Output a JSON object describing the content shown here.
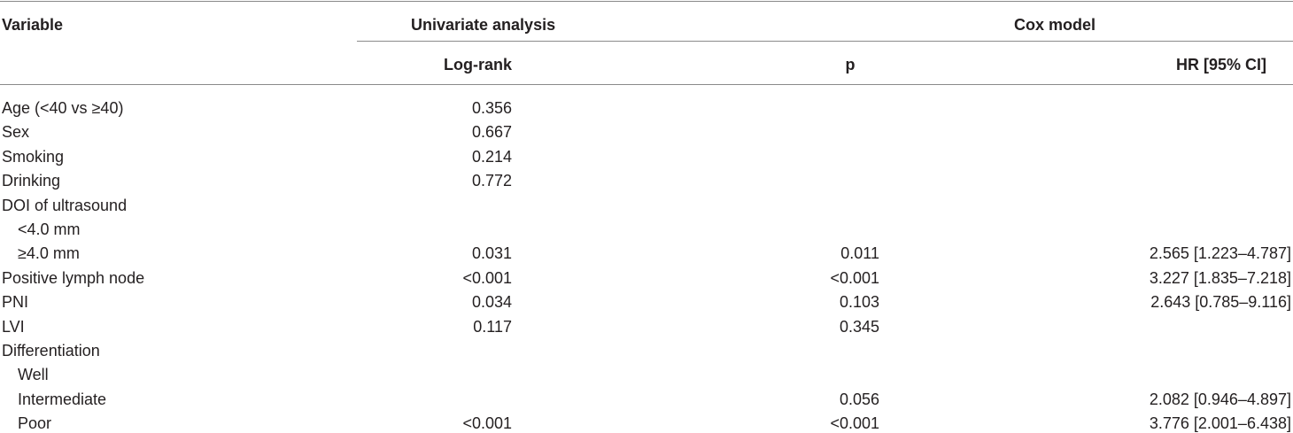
{
  "header": {
    "variable": "Variable",
    "univariate": "Univariate analysis",
    "cox": "Cox model",
    "logrank": "Log-rank",
    "p": "p",
    "hr": "HR [95% CI]"
  },
  "rows": [
    {
      "label": "Age (<40 vs ≥40)",
      "indent": false,
      "logrank": "0.356",
      "p": "",
      "hr": ""
    },
    {
      "label": "Sex",
      "indent": false,
      "logrank": "0.667",
      "p": "",
      "hr": ""
    },
    {
      "label": "Smoking",
      "indent": false,
      "logrank": "0.214",
      "p": "",
      "hr": ""
    },
    {
      "label": "Drinking",
      "indent": false,
      "logrank": "0.772",
      "p": "",
      "hr": ""
    },
    {
      "label": "DOI of ultrasound",
      "indent": false,
      "logrank": "",
      "p": "",
      "hr": ""
    },
    {
      "label": "<4.0 mm",
      "indent": true,
      "logrank": "",
      "p": "",
      "hr": ""
    },
    {
      "label": "≥4.0 mm",
      "indent": true,
      "logrank": "0.031",
      "p": "0.011",
      "hr": "2.565 [1.223–4.787]"
    },
    {
      "label": "Positive lymph node",
      "indent": false,
      "logrank": "<0.001",
      "p": "<0.001",
      "hr": "3.227 [1.835–7.218]"
    },
    {
      "label": "PNI",
      "indent": false,
      "logrank": "0.034",
      "p": "0.103",
      "hr": "2.643 [0.785–9.116]"
    },
    {
      "label": "LVI",
      "indent": false,
      "logrank": "0.117",
      "p": "0.345",
      "hr": ""
    },
    {
      "label": "Differentiation",
      "indent": false,
      "logrank": "",
      "p": "",
      "hr": ""
    },
    {
      "label": "Well",
      "indent": true,
      "logrank": "",
      "p": "",
      "hr": ""
    },
    {
      "label": "Intermediate",
      "indent": true,
      "logrank": "",
      "p": "0.056",
      "hr": "2.082 [0.946–4.897]"
    },
    {
      "label": "Poor",
      "indent": true,
      "logrank": "<0.001",
      "p": "<0.001",
      "hr": "3.776 [2.001–6.438]"
    }
  ]
}
